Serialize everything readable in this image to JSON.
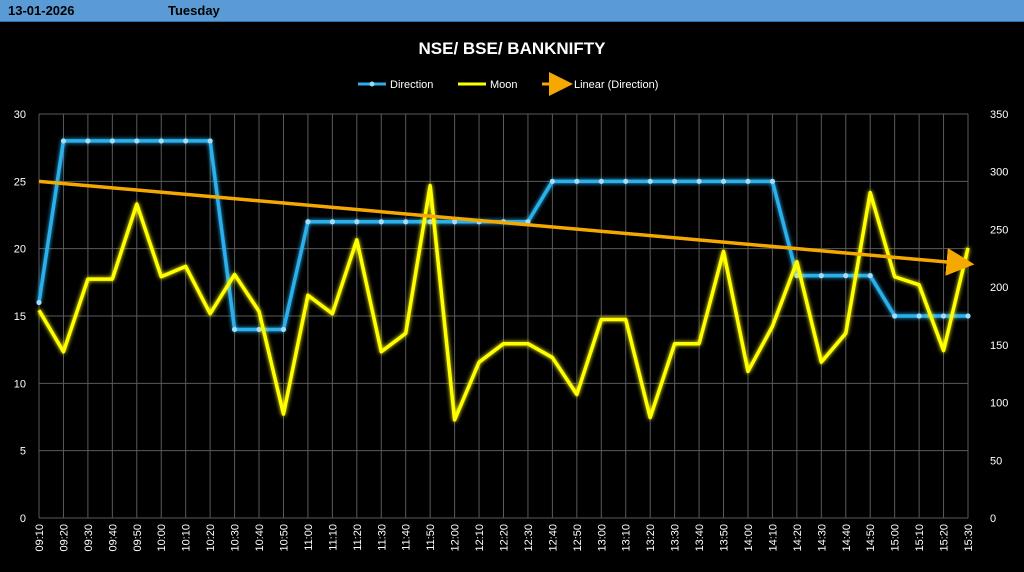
{
  "header": {
    "date": "13-01-2026",
    "day": "Tuesday"
  },
  "colors": {
    "direction": "#2ab0ec",
    "moon": "#ffff00",
    "trend": "#f5a800",
    "header_bg": "#5b9bd5"
  },
  "chart_data": {
    "type": "line",
    "title": "NSE/ BSE/ BANKNIFTY",
    "legend": [
      "Direction",
      "Moon",
      "Linear (Direction)"
    ],
    "legend_position": "top",
    "grid": true,
    "categories": [
      "09:10",
      "09:20",
      "09:30",
      "09:40",
      "09:50",
      "10:00",
      "10:10",
      "10:20",
      "10:30",
      "10:40",
      "10:50",
      "11:00",
      "11:10",
      "11:20",
      "11:30",
      "11:40",
      "11:50",
      "12:00",
      "12:10",
      "12:20",
      "12:30",
      "12:40",
      "12:50",
      "13:00",
      "13:10",
      "13:20",
      "13:30",
      "13:40",
      "13:50",
      "14:00",
      "14:10",
      "14:20",
      "14:30",
      "14:40",
      "14:50",
      "15:00",
      "15:10",
      "15:20",
      "15:30"
    ],
    "y_left": {
      "min": 0,
      "max": 30,
      "ticks": [
        0,
        5,
        10,
        15,
        20,
        25,
        30
      ]
    },
    "y_right": {
      "min": 0,
      "max": 350,
      "ticks": [
        0,
        50,
        100,
        150,
        200,
        250,
        300,
        350
      ]
    },
    "series": [
      {
        "name": "Direction",
        "axis": "left",
        "values": [
          16,
          28,
          28,
          28,
          28,
          28,
          28,
          28,
          14,
          14,
          14,
          22,
          22,
          22,
          22,
          22,
          22,
          22,
          22,
          22,
          22,
          25,
          25,
          25,
          25,
          25,
          25,
          25,
          25,
          25,
          25,
          18,
          18,
          18,
          18,
          15,
          15,
          15,
          15
        ]
      },
      {
        "name": "Moon",
        "axis": "right",
        "values": [
          180,
          144,
          207,
          207,
          272,
          209,
          218,
          177,
          211,
          179,
          90,
          193,
          177,
          241,
          144,
          160,
          288,
          85,
          135,
          151,
          151,
          139,
          107,
          172,
          172,
          87,
          151,
          151,
          231,
          127,
          166,
          222,
          135,
          160,
          282,
          209,
          202,
          145,
          234
        ]
      },
      {
        "name": "Linear (Direction)",
        "axis": "left",
        "trend": "linear",
        "from": 25.0,
        "to": 18.9
      }
    ]
  }
}
